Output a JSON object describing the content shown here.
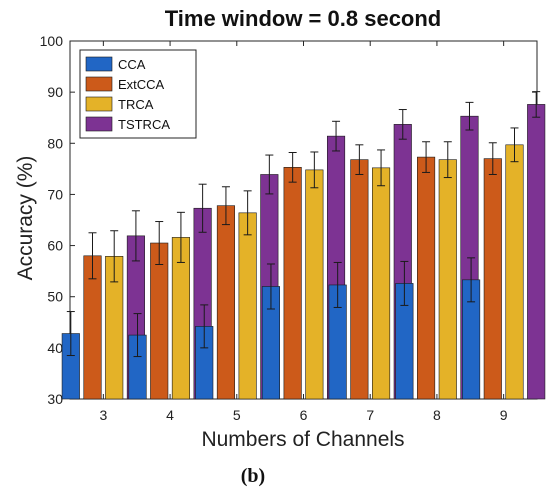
{
  "chart_data": {
    "type": "bar",
    "title": "Time window = 0.8 second",
    "xlabel": "Numbers of Channels",
    "ylabel": "Accuracy (%)",
    "subfigure_label": "(b)",
    "categories": [
      "3",
      "4",
      "5",
      "6",
      "7",
      "8",
      "9"
    ],
    "ylim": [
      30,
      100
    ],
    "yticks": [
      30,
      40,
      50,
      60,
      70,
      80,
      90,
      100
    ],
    "grid": false,
    "legend_position": "top-left",
    "error_bars": true,
    "series": [
      {
        "name": "CCA",
        "color": "#2166c5",
        "values": [
          42.8,
          42.5,
          44.2,
          52.0,
          52.3,
          52.6,
          53.3
        ],
        "errors": [
          4.3,
          4.2,
          4.2,
          4.4,
          4.4,
          4.3,
          4.3
        ]
      },
      {
        "name": "ExtCCA",
        "color": "#cc5a1a",
        "values": [
          58.0,
          60.5,
          67.8,
          75.3,
          76.8,
          77.3,
          77.0
        ],
        "errors": [
          4.5,
          4.2,
          3.7,
          2.9,
          2.9,
          3.0,
          3.1
        ]
      },
      {
        "name": "TRCA",
        "color": "#e4b228",
        "values": [
          57.9,
          61.6,
          66.4,
          74.8,
          75.2,
          76.8,
          79.7
        ],
        "errors": [
          5.0,
          4.9,
          4.3,
          3.5,
          3.5,
          3.5,
          3.3
        ]
      },
      {
        "name": "TSTRCA",
        "color": "#7d3393",
        "values": [
          61.9,
          67.3,
          73.9,
          81.4,
          83.7,
          85.3,
          87.6
        ],
        "errors": [
          4.9,
          4.7,
          3.8,
          2.9,
          2.9,
          2.7,
          2.5
        ]
      }
    ]
  }
}
